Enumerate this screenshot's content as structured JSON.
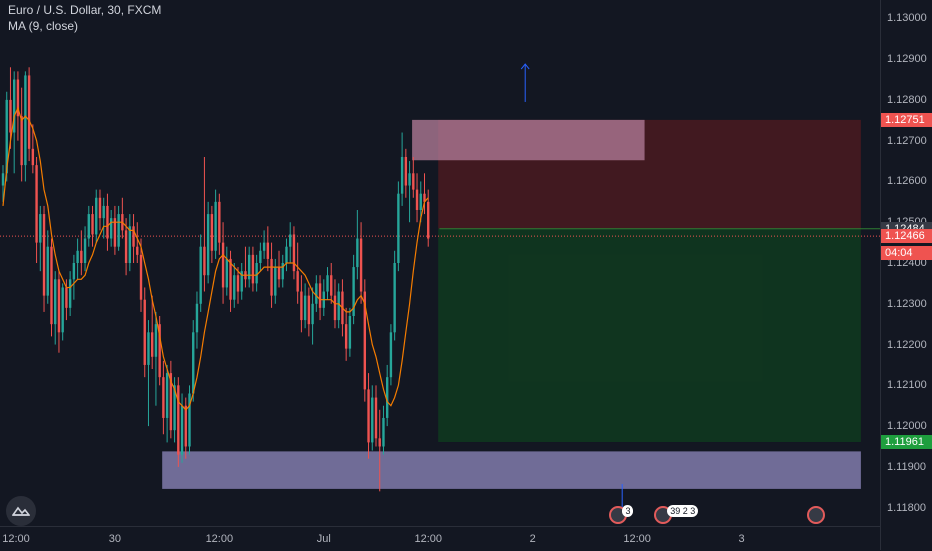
{
  "legend": {
    "symbol": "Euro / U.S. Dollar, 30, FXCM",
    "indicator": "MA (9, close)"
  },
  "colors": {
    "background": "#131722",
    "up": "#26a69a",
    "down": "#ef5350",
    "ma": "#f57c00",
    "stop_zone": "#4a1a20",
    "target_zone": "#0f3a1f",
    "supply_box": "#b07a96",
    "demand_box": "#8a84b8",
    "price_line": "#ef5350"
  },
  "price_axis": {
    "ticks": [
      "1.13000",
      "1.12900",
      "1.12800",
      "1.12700",
      "1.12600",
      "1.12500",
      "1.12400",
      "1.12300",
      "1.12200",
      "1.12100",
      "1.12000",
      "1.11900",
      "1.11800"
    ],
    "tags": [
      {
        "label": "1.12751",
        "price": 1.12751,
        "color": "#ef5350"
      },
      {
        "label": "1.12484",
        "price": 1.12484,
        "color": "#363a45"
      },
      {
        "label": "1.12466",
        "price": 1.12466,
        "color": "#ef5350"
      },
      {
        "label": "04:04",
        "price": 1.12425,
        "color": "#ef5350"
      },
      {
        "label": "1.11961",
        "price": 1.11961,
        "color": "#1e9e3e"
      }
    ]
  },
  "time_axis": {
    "ticks": [
      {
        "label": "12:00",
        "bar": 2
      },
      {
        "label": "30",
        "bar": 30
      },
      {
        "label": "12:00",
        "bar": 58
      },
      {
        "label": "Jul",
        "bar": 86
      },
      {
        "label": "12:00",
        "bar": 114
      },
      {
        "label": "2",
        "bar": 142
      },
      {
        "label": "12:00",
        "bar": 170
      },
      {
        "label": "3",
        "bar": 198
      }
    ]
  },
  "events": [
    {
      "count": "3",
      "bar": 165
    },
    {
      "count": "39 2 3",
      "bar": 177
    },
    {
      "count": "",
      "bar": 218
    }
  ],
  "chart_data": {
    "type": "candlestick",
    "title": "Euro / U.S. Dollar, 30, FXCM",
    "ylim": [
      1.11755,
      1.13045
    ],
    "indicator": {
      "name": "MA (9, close)",
      "period": 9
    },
    "ohlc": [
      [
        1.1259,
        1.1264,
        1.1255,
        1.1262
      ],
      [
        1.1262,
        1.1282,
        1.126,
        1.128
      ],
      [
        1.128,
        1.1288,
        1.1268,
        1.1272
      ],
      [
        1.1272,
        1.1287,
        1.1262,
        1.1285
      ],
      [
        1.1285,
        1.1287,
        1.127,
        1.1276
      ],
      [
        1.1276,
        1.1283,
        1.126,
        1.1264
      ],
      [
        1.1264,
        1.1287,
        1.126,
        1.1286
      ],
      [
        1.1286,
        1.1288,
        1.1265,
        1.1268
      ],
      [
        1.1268,
        1.1274,
        1.1262,
        1.1264
      ],
      [
        1.1264,
        1.1266,
        1.124,
        1.1245
      ],
      [
        1.1245,
        1.1254,
        1.1238,
        1.1252
      ],
      [
        1.1252,
        1.1254,
        1.1228,
        1.1232
      ],
      [
        1.1232,
        1.1248,
        1.123,
        1.1244
      ],
      [
        1.1244,
        1.1246,
        1.1222,
        1.1225
      ],
      [
        1.1225,
        1.1238,
        1.122,
        1.1236
      ],
      [
        1.1236,
        1.1238,
        1.1218,
        1.1223
      ],
      [
        1.1223,
        1.1235,
        1.1221,
        1.1234
      ],
      [
        1.1234,
        1.1236,
        1.1226,
        1.1229
      ],
      [
        1.1229,
        1.1238,
        1.1227,
        1.1236
      ],
      [
        1.1236,
        1.1242,
        1.1231,
        1.124
      ],
      [
        1.124,
        1.1246,
        1.1236,
        1.1243
      ],
      [
        1.1243,
        1.1248,
        1.1237,
        1.124
      ],
      [
        1.124,
        1.1249,
        1.1238,
        1.1246
      ],
      [
        1.1246,
        1.1254,
        1.1244,
        1.1252
      ],
      [
        1.1252,
        1.1254,
        1.1244,
        1.1247
      ],
      [
        1.1247,
        1.1258,
        1.1245,
        1.1256
      ],
      [
        1.1256,
        1.1258,
        1.1248,
        1.1251
      ],
      [
        1.1251,
        1.1256,
        1.1246,
        1.1254
      ],
      [
        1.1254,
        1.1257,
        1.1243,
        1.1246
      ],
      [
        1.1246,
        1.1253,
        1.1244,
        1.1251
      ],
      [
        1.1251,
        1.1254,
        1.1242,
        1.1244
      ],
      [
        1.1244,
        1.1254,
        1.1243,
        1.1252
      ],
      [
        1.1252,
        1.1256,
        1.1246,
        1.1248
      ],
      [
        1.1248,
        1.1251,
        1.1237,
        1.124
      ],
      [
        1.124,
        1.1252,
        1.1238,
        1.1249
      ],
      [
        1.1249,
        1.1252,
        1.124,
        1.1244
      ],
      [
        1.1244,
        1.125,
        1.124,
        1.1242
      ],
      [
        1.1242,
        1.1246,
        1.1228,
        1.1231
      ],
      [
        1.1231,
        1.1234,
        1.1212,
        1.1215
      ],
      [
        1.1215,
        1.1226,
        1.12,
        1.1223
      ],
      [
        1.1223,
        1.1232,
        1.1214,
        1.1217
      ],
      [
        1.1217,
        1.1228,
        1.1205,
        1.1225
      ],
      [
        1.1225,
        1.1227,
        1.121,
        1.1212
      ],
      [
        1.1212,
        1.1216,
        1.1198,
        1.1202
      ],
      [
        1.1202,
        1.1215,
        1.1196,
        1.1213
      ],
      [
        1.1213,
        1.1216,
        1.1197,
        1.1199
      ],
      [
        1.1199,
        1.1212,
        1.1196,
        1.121
      ],
      [
        1.121,
        1.1212,
        1.119,
        1.1193
      ],
      [
        1.1193,
        1.1208,
        1.1191,
        1.1205
      ],
      [
        1.1205,
        1.1207,
        1.1192,
        1.1195
      ],
      [
        1.1195,
        1.121,
        1.1193,
        1.1208
      ],
      [
        1.1208,
        1.1226,
        1.1206,
        1.1223
      ],
      [
        1.1223,
        1.1233,
        1.1219,
        1.123
      ],
      [
        1.123,
        1.1247,
        1.1228,
        1.1244
      ],
      [
        1.1244,
        1.1266,
        1.1233,
        1.1237
      ],
      [
        1.1237,
        1.1255,
        1.1235,
        1.1252
      ],
      [
        1.1252,
        1.1254,
        1.124,
        1.1243
      ],
      [
        1.1243,
        1.1258,
        1.1241,
        1.1255
      ],
      [
        1.1255,
        1.1257,
        1.1242,
        1.1245
      ],
      [
        1.1245,
        1.125,
        1.123,
        1.1234
      ],
      [
        1.1234,
        1.1244,
        1.1232,
        1.1241
      ],
      [
        1.1241,
        1.1243,
        1.1228,
        1.1231
      ],
      [
        1.1231,
        1.124,
        1.1229,
        1.1237
      ],
      [
        1.1237,
        1.1239,
        1.123,
        1.1233
      ],
      [
        1.1233,
        1.124,
        1.1231,
        1.1238
      ],
      [
        1.1238,
        1.1244,
        1.1234,
        1.1236
      ],
      [
        1.1236,
        1.1244,
        1.1234,
        1.1242
      ],
      [
        1.1242,
        1.1244,
        1.1233,
        1.1235
      ],
      [
        1.1235,
        1.1242,
        1.1233,
        1.124
      ],
      [
        1.124,
        1.1245,
        1.1238,
        1.1243
      ],
      [
        1.1243,
        1.1248,
        1.1241,
        1.1245
      ],
      [
        1.1245,
        1.1249,
        1.1238,
        1.1241
      ],
      [
        1.1241,
        1.1245,
        1.1229,
        1.1232
      ],
      [
        1.1232,
        1.1241,
        1.123,
        1.1239
      ],
      [
        1.1239,
        1.1243,
        1.1234,
        1.1236
      ],
      [
        1.1236,
        1.1242,
        1.1234,
        1.124
      ],
      [
        1.124,
        1.1246,
        1.1238,
        1.1244
      ],
      [
        1.1244,
        1.125,
        1.124,
        1.1247
      ],
      [
        1.1247,
        1.1249,
        1.1236,
        1.1238
      ],
      [
        1.1238,
        1.1245,
        1.123,
        1.1233
      ],
      [
        1.1233,
        1.1237,
        1.1223,
        1.1226
      ],
      [
        1.1226,
        1.1235,
        1.1224,
        1.1232
      ],
      [
        1.1232,
        1.1234,
        1.1222,
        1.1225
      ],
      [
        1.1225,
        1.1234,
        1.122,
        1.123
      ],
      [
        1.123,
        1.1237,
        1.1228,
        1.1235
      ],
      [
        1.1235,
        1.1237,
        1.1226,
        1.1229
      ],
      [
        1.1229,
        1.1236,
        1.1227,
        1.1233
      ],
      [
        1.1233,
        1.1239,
        1.1231,
        1.1237
      ],
      [
        1.1237,
        1.124,
        1.123,
        1.1232
      ],
      [
        1.1232,
        1.1236,
        1.1224,
        1.1226
      ],
      [
        1.1226,
        1.1235,
        1.1224,
        1.1233
      ],
      [
        1.1233,
        1.1236,
        1.1222,
        1.1225
      ],
      [
        1.1225,
        1.1229,
        1.1216,
        1.1219
      ],
      [
        1.1219,
        1.1229,
        1.1217,
        1.1227
      ],
      [
        1.1227,
        1.1242,
        1.1225,
        1.1239
      ],
      [
        1.1239,
        1.1253,
        1.1236,
        1.1246
      ],
      [
        1.1246,
        1.125,
        1.123,
        1.1233
      ],
      [
        1.1233,
        1.1236,
        1.1206,
        1.1209
      ],
      [
        1.1209,
        1.1213,
        1.1192,
        1.1196
      ],
      [
        1.1196,
        1.121,
        1.1194,
        1.1207
      ],
      [
        1.1207,
        1.121,
        1.1195,
        1.1197
      ],
      [
        1.1197,
        1.1204,
        1.1184,
        1.1195
      ],
      [
        1.1195,
        1.1205,
        1.1193,
        1.1202
      ],
      [
        1.1202,
        1.1215,
        1.12,
        1.1212
      ],
      [
        1.1212,
        1.1225,
        1.121,
        1.1223
      ],
      [
        1.1223,
        1.1243,
        1.1221,
        1.124
      ],
      [
        1.124,
        1.126,
        1.1238,
        1.1257
      ],
      [
        1.1257,
        1.1272,
        1.1254,
        1.1266
      ],
      [
        1.1266,
        1.1268,
        1.1256,
        1.1259
      ],
      [
        1.1259,
        1.1265,
        1.125,
        1.1262
      ],
      [
        1.1262,
        1.1266,
        1.1256,
        1.1258
      ],
      [
        1.1258,
        1.1262,
        1.125,
        1.1253
      ],
      [
        1.1253,
        1.126,
        1.125,
        1.1257
      ],
      [
        1.1257,
        1.1262,
        1.1252,
        1.1255
      ],
      [
        1.1255,
        1.1258,
        1.1244,
        1.1246
      ]
    ],
    "ma_values": [
      1.1254,
      1.1263,
      1.127,
      1.1276,
      1.1278,
      1.1275,
      1.1276,
      1.1275,
      1.1273,
      1.127,
      1.1265,
      1.1258,
      1.1254,
      1.1247,
      1.1242,
      1.1238,
      1.1236,
      1.1234,
      1.1234,
      1.1235,
      1.1236,
      1.1236,
      1.1237,
      1.124,
      1.1242,
      1.1245,
      1.1247,
      1.1249,
      1.1249,
      1.125,
      1.125,
      1.125,
      1.125,
      1.1249,
      1.1248,
      1.1248,
      1.1246,
      1.1244,
      1.124,
      1.1236,
      1.1231,
      1.1227,
      1.1222,
      1.1217,
      1.1214,
      1.1211,
      1.1209,
      1.1206,
      1.1205,
      1.1204,
      1.1205,
      1.1208,
      1.1212,
      1.1217,
      1.1223,
      1.1228,
      1.1233,
      1.1238,
      1.1241,
      1.1242,
      1.1241,
      1.124,
      1.1239,
      1.1238,
      1.1237,
      1.1237,
      1.1237,
      1.1237,
      1.1237,
      1.1238,
      1.1239,
      1.1239,
      1.1239,
      1.1239,
      1.1239,
      1.1239,
      1.124,
      1.124,
      1.124,
      1.1239,
      1.1238,
      1.1237,
      1.1235,
      1.1233,
      1.1232,
      1.1231,
      1.1231,
      1.1231,
      1.1231,
      1.123,
      1.123,
      1.1229,
      1.1228,
      1.1228,
      1.1229,
      1.1231,
      1.1232,
      1.123,
      1.1225,
      1.122,
      1.1217,
      1.1213,
      1.1209,
      1.1206,
      1.1205,
      1.1207,
      1.121,
      1.1216,
      1.1223,
      1.123,
      1.1238,
      1.1245,
      1.1251,
      1.1255,
      1.1256
    ],
    "current_price": 1.12466,
    "boxes": [
      {
        "name": "supply-zone",
        "bar_start": 110,
        "bar_end": 172,
        "price_top": 1.12751,
        "price_bottom": 1.12652,
        "color": "#b07a96"
      },
      {
        "name": "demand-zone",
        "bar_start": 43,
        "bar_end": 230,
        "price_top": 1.11938,
        "price_bottom": 1.11846,
        "color": "#8a84b8"
      },
      {
        "name": "stop-zone",
        "bar_start": 117,
        "bar_end": 230,
        "price_top": 1.12751,
        "price_bottom": 1.12484,
        "color": "#4a1a20"
      },
      {
        "name": "target-zone",
        "bar_start": 117,
        "bar_end": 230,
        "price_top": 1.12484,
        "price_bottom": 1.11961,
        "color": "#0f3a1f"
      }
    ],
    "arrows": [
      {
        "name": "up-arrow",
        "bar": 140,
        "price_from": 1.12795,
        "price_to": 1.12888,
        "direction": "up"
      },
      {
        "name": "down-arrow",
        "bar": 166,
        "price_from": 1.11858,
        "price_to": 1.11776,
        "direction": "down"
      }
    ]
  }
}
